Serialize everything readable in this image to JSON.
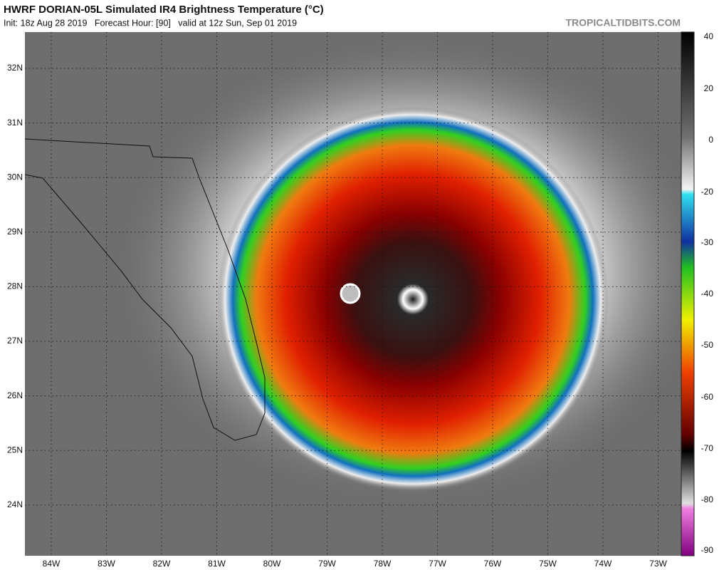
{
  "header": {
    "title": "HWRF DORIAN-05L Simulated IR4 Brightness Temperature (°C)",
    "subtitle": "Init: 18z Aug 28 2019   Forecast Hour: [90]   valid at 12z Sun, Sep 01 2019",
    "source": "TROPICALTIDBITS.COM"
  },
  "map": {
    "lat_labels": [
      "32N",
      "31N",
      "30N",
      "29N",
      "28N",
      "27N",
      "26N",
      "25N",
      "24N"
    ],
    "lon_labels": [
      "84W",
      "83W",
      "82W",
      "81W",
      "80W",
      "79W",
      "78W",
      "77W",
      "76W",
      "75W",
      "74W",
      "73W"
    ]
  },
  "colorbar": {
    "labels": [
      "40",
      "20",
      "0",
      "-20",
      "-30",
      "-40",
      "-50",
      "-60",
      "-70",
      "-80",
      "-90"
    ]
  }
}
